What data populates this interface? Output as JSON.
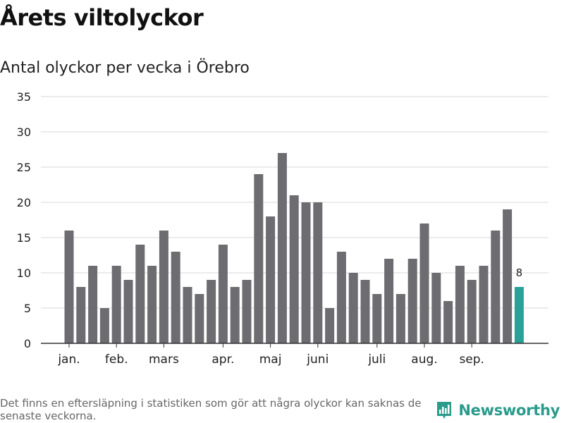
{
  "title": "Årets viltolyckor",
  "subtitle": "Antal olyckor per vecka i Örebro",
  "footnote": "Det finns en eftersläpning i statistiken som gör att några olyckor kan saknas de senaste veckorna.",
  "brand": {
    "name": "Newsworthy",
    "icon": "bar-chart-logo-icon"
  },
  "colors": {
    "bar": "#6d6c70",
    "highlight": "#2aa198",
    "grid": "#d9d9d9",
    "axis": "#333333",
    "brand": "#2b9b8c"
  },
  "chart_data": {
    "type": "bar",
    "title": "Årets viltolyckor",
    "subtitle": "Antal olyckor per vecka i Örebro",
    "xlabel": "",
    "ylabel": "",
    "ylim": [
      0,
      35
    ],
    "yticks": [
      0,
      5,
      10,
      15,
      20,
      25,
      30,
      35
    ],
    "grid": true,
    "values": [
      16,
      8,
      11,
      5,
      11,
      9,
      14,
      11,
      16,
      13,
      8,
      7,
      9,
      14,
      8,
      9,
      24,
      18,
      27,
      21,
      20,
      20,
      5,
      13,
      10,
      9,
      7,
      12,
      7,
      12,
      17,
      10,
      6,
      11,
      9,
      11,
      16,
      19,
      8
    ],
    "month_labels": [
      {
        "label": "jan.",
        "week_index": 0
      },
      {
        "label": "feb.",
        "week_index": 4
      },
      {
        "label": "mars",
        "week_index": 8
      },
      {
        "label": "apr.",
        "week_index": 13
      },
      {
        "label": "maj",
        "week_index": 17
      },
      {
        "label": "juni",
        "week_index": 21
      },
      {
        "label": "juli",
        "week_index": 26
      },
      {
        "label": "aug.",
        "week_index": 30
      },
      {
        "label": "sep.",
        "week_index": 34
      }
    ],
    "highlight_index": 38,
    "highlight_label": "8"
  }
}
